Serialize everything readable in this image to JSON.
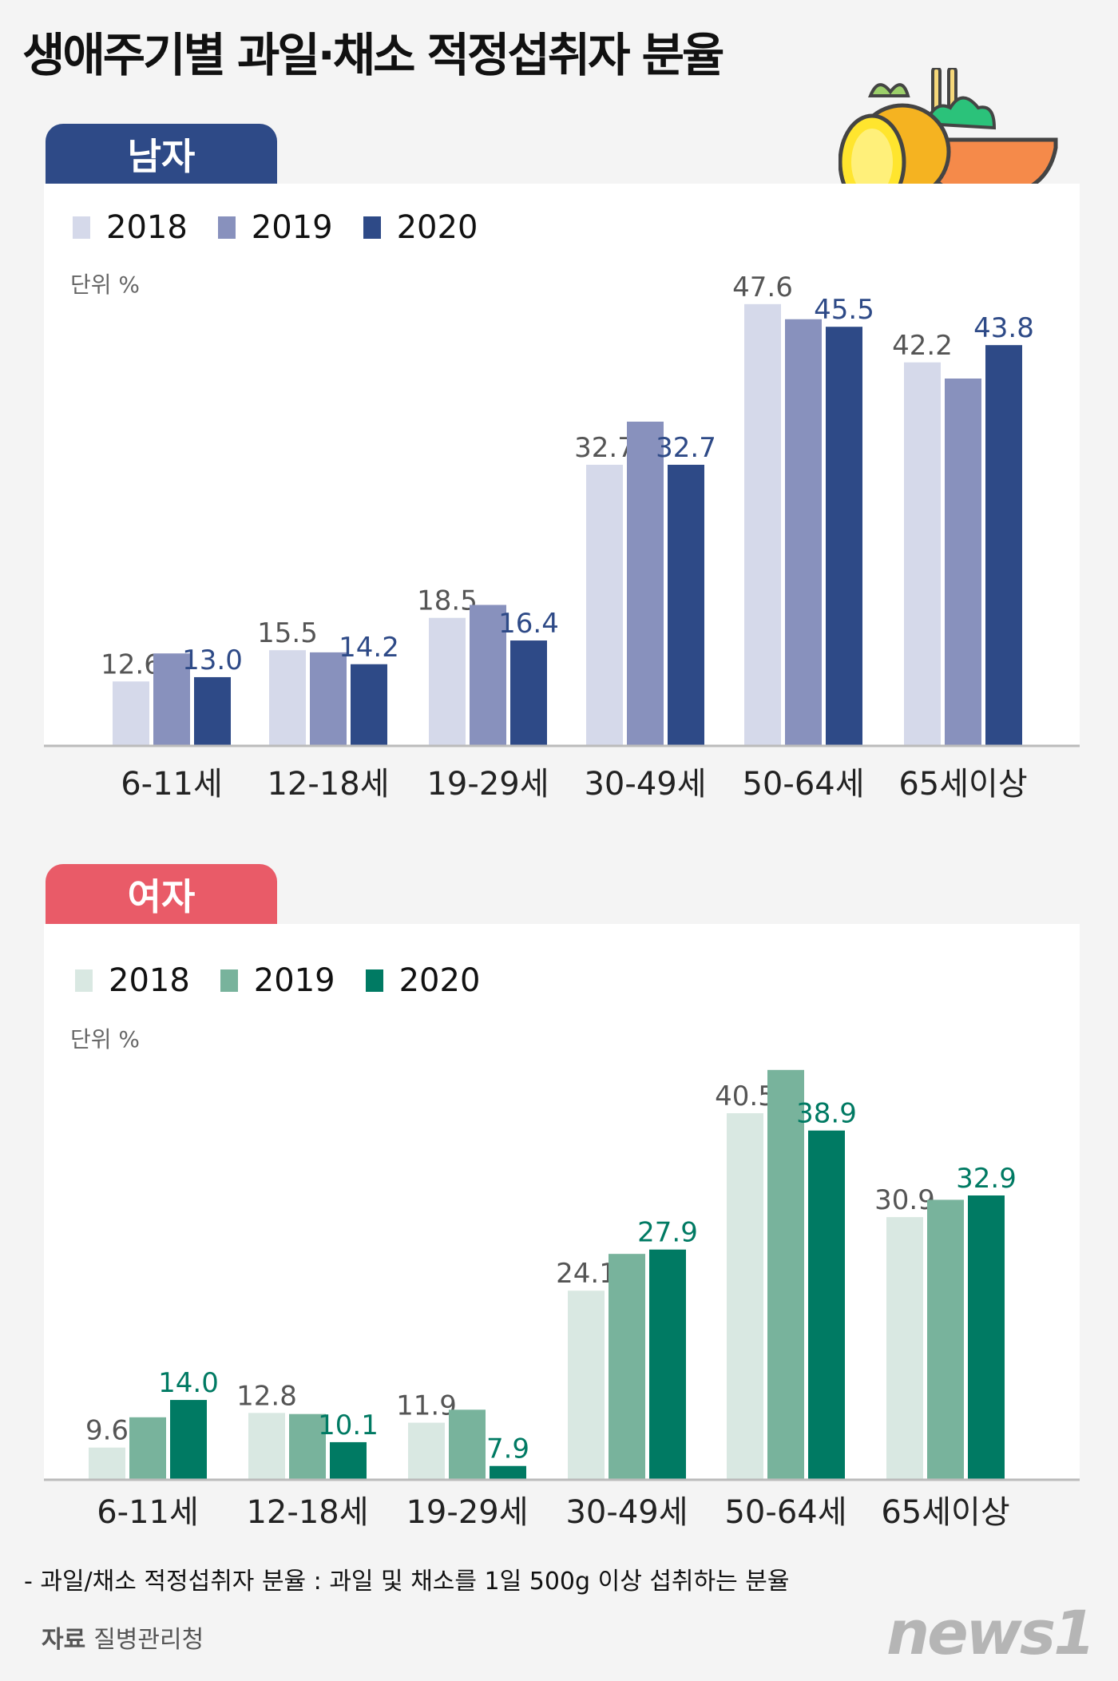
{
  "title": "생애주기별 과일·채소 적정섭취자 분율",
  "icon": "fruit-salad-bowl-icon",
  "footnote": "- 과일/채소 적정섭취자 분율 : 과일 및 채소를 1일 500g 이상 섭취하는 분율",
  "source_label": "자료",
  "source": "질병관리청",
  "logo": "news1",
  "chart_data": [
    {
      "type": "bar",
      "title": "남자",
      "unit": "단위 %",
      "categories": [
        "6-11세",
        "12-18세",
        "19-29세",
        "30-49세",
        "50-64세",
        "65세이상"
      ],
      "series": [
        {
          "name": "2018",
          "color": "#d5d9ea",
          "label_color": "#555555",
          "labeled": true,
          "values": [
            12.6,
            15.5,
            18.5,
            32.7,
            47.6,
            42.2
          ]
        },
        {
          "name": "2019",
          "color": "#8891bd",
          "label_color": "#555555",
          "labeled": false,
          "values": [
            15.2,
            15.3,
            19.7,
            36.7,
            46.2,
            40.7
          ]
        },
        {
          "name": "2020",
          "color": "#2e4a87",
          "label_color": "#2e4a87",
          "labeled": true,
          "values": [
            13.0,
            14.2,
            16.4,
            32.7,
            45.5,
            43.8
          ]
        }
      ],
      "ylim": [
        6.7,
        50
      ],
      "grid": false,
      "legend": "top-left",
      "accent": "#2e4a87"
    },
    {
      "type": "bar",
      "title": "여자",
      "unit": "단위 %",
      "categories": [
        "6-11세",
        "12-18세",
        "19-29세",
        "30-49세",
        "50-64세",
        "65세이상"
      ],
      "series": [
        {
          "name": "2018",
          "color": "#d9e8e2",
          "label_color": "#555555",
          "labeled": true,
          "values": [
            9.6,
            12.8,
            11.9,
            24.1,
            40.5,
            30.9
          ]
        },
        {
          "name": "2019",
          "color": "#78b39c",
          "label_color": "#555555",
          "labeled": false,
          "values": [
            12.4,
            12.7,
            13.1,
            27.5,
            44.5,
            32.5
          ]
        },
        {
          "name": "2020",
          "color": "#007a63",
          "label_color": "#007a63",
          "labeled": true,
          "values": [
            14.0,
            10.1,
            7.9,
            27.9,
            38.9,
            32.9
          ]
        }
      ],
      "ylim": [
        6.7,
        45
      ],
      "grid": false,
      "legend": "top-left",
      "accent": "#e95b68"
    }
  ]
}
